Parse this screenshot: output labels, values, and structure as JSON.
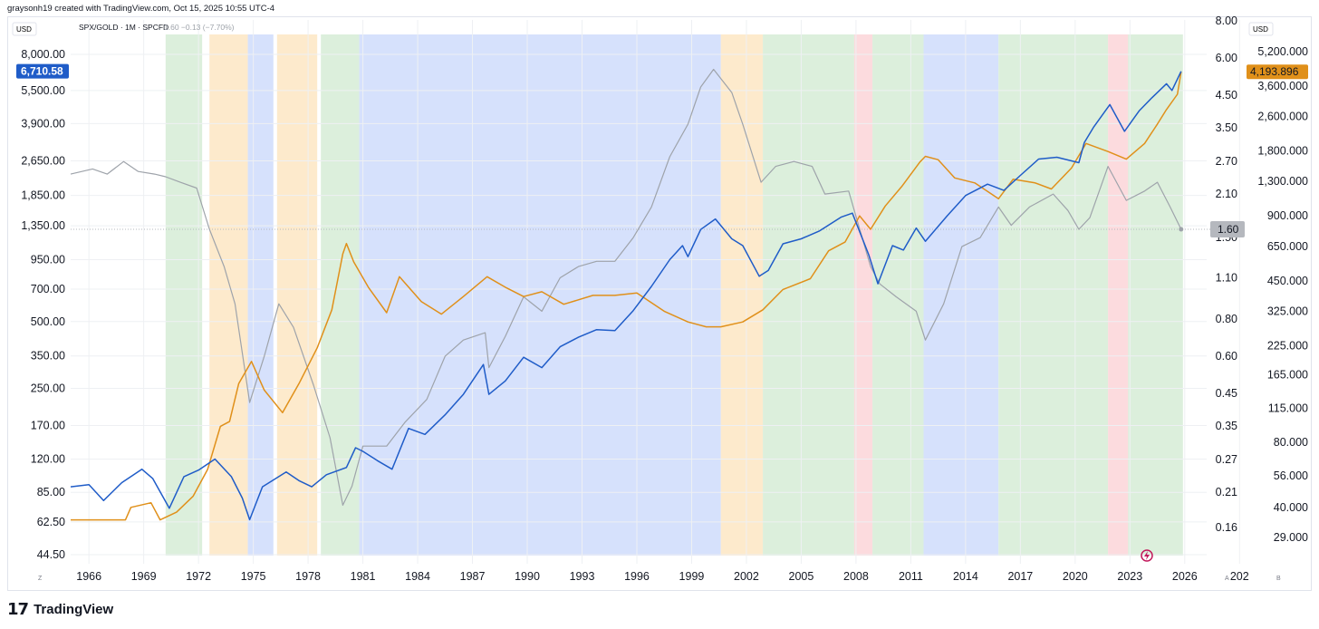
{
  "header": {
    "credit": "graysonh19 created with TradingView.com, Oct 15, 2025 10:55 UTC-4",
    "symbol_line": "SPX/GOLD · 1M · SPCFD",
    "symbol_values": "1.60  −0.13 (−7.70%)"
  },
  "footer": {
    "brand": "TradingView"
  },
  "colors": {
    "spx": "#1f5cc8",
    "gold": "#e0901a",
    "ratio": "#9ea3aa",
    "band_green": "#d6ecd6",
    "band_orange": "#fde6c3",
    "band_blue": "#cfdcfb",
    "band_red": "#fbd5d8",
    "axis_text": "#131722"
  },
  "chart_data": {
    "type": "line",
    "x_ticks": [
      "1966",
      "1969",
      "1972",
      "1975",
      "1978",
      "1981",
      "1984",
      "1987",
      "1990",
      "1993",
      "1996",
      "1999",
      "2002",
      "2005",
      "2008",
      "2011",
      "2014",
      "2017",
      "2020",
      "2023",
      "2026",
      "202"
    ],
    "y_scale": "log",
    "left_axis": {
      "currency": "USD",
      "ticks": [
        "8,000.00",
        "5,500.00",
        "3,900.00",
        "2,650.00",
        "1,850.00",
        "1,350.00",
        "950.00",
        "700.00",
        "500.00",
        "350.00",
        "250.00",
        "170.00",
        "120.00",
        "85.00",
        "62.50",
        "44.50"
      ],
      "last_value_label": "6,710.58"
    },
    "center_axis": {
      "ticks": [
        "8.00",
        "6.00",
        "4.50",
        "3.50",
        "2.70",
        "2.10",
        "1.50",
        "1.10",
        "0.80",
        "0.60",
        "0.45",
        "0.35",
        "0.27",
        "0.21",
        "0.16"
      ],
      "last_value_label": "1.60"
    },
    "right_axis": {
      "currency": "USD",
      "ticks": [
        "5,200.000",
        "3,600.000",
        "2,600.000",
        "1,800.000",
        "1,300.000",
        "900.000",
        "650.000",
        "450.000",
        "325.000",
        "225.000",
        "165.000",
        "115.000",
        "80.000",
        "56.000",
        "40.000",
        "29.000"
      ],
      "last_value_label": "4,193.896"
    },
    "series": [
      {
        "key": "spx",
        "axis": "left",
        "points": [
          [
            1965.0,
            90
          ],
          [
            1966.0,
            92
          ],
          [
            1966.8,
            78
          ],
          [
            1967.8,
            94
          ],
          [
            1968.9,
            108
          ],
          [
            1969.5,
            98
          ],
          [
            1970.4,
            72
          ],
          [
            1971.2,
            100
          ],
          [
            1972.0,
            107
          ],
          [
            1972.9,
            120
          ],
          [
            1973.8,
            100
          ],
          [
            1974.4,
            80
          ],
          [
            1974.8,
            64
          ],
          [
            1975.5,
            90
          ],
          [
            1976.8,
            105
          ],
          [
            1977.5,
            96
          ],
          [
            1978.2,
            90
          ],
          [
            1979.0,
            102
          ],
          [
            1980.1,
            110
          ],
          [
            1980.6,
            135
          ],
          [
            1981.0,
            130
          ],
          [
            1981.8,
            118
          ],
          [
            1982.6,
            108
          ],
          [
            1983.5,
            165
          ],
          [
            1984.4,
            155
          ],
          [
            1985.5,
            190
          ],
          [
            1986.5,
            235
          ],
          [
            1987.6,
            320
          ],
          [
            1987.9,
            235
          ],
          [
            1988.8,
            270
          ],
          [
            1989.8,
            345
          ],
          [
            1990.8,
            310
          ],
          [
            1991.8,
            385
          ],
          [
            1992.8,
            425
          ],
          [
            1993.8,
            460
          ],
          [
            1994.8,
            455
          ],
          [
            1995.8,
            560
          ],
          [
            1996.8,
            720
          ],
          [
            1997.8,
            950
          ],
          [
            1998.5,
            1100
          ],
          [
            1998.8,
            980
          ],
          [
            1999.5,
            1300
          ],
          [
            2000.3,
            1450
          ],
          [
            2001.2,
            1180
          ],
          [
            2001.8,
            1100
          ],
          [
            2002.7,
            800
          ],
          [
            2003.2,
            850
          ],
          [
            2004.0,
            1120
          ],
          [
            2005.0,
            1180
          ],
          [
            2006.0,
            1280
          ],
          [
            2007.2,
            1480
          ],
          [
            2007.8,
            1540
          ],
          [
            2008.7,
            1000
          ],
          [
            2009.2,
            740
          ],
          [
            2010.0,
            1100
          ],
          [
            2010.6,
            1050
          ],
          [
            2011.3,
            1320
          ],
          [
            2011.8,
            1150
          ],
          [
            2013.0,
            1500
          ],
          [
            2014.0,
            1850
          ],
          [
            2015.2,
            2080
          ],
          [
            2016.1,
            1950
          ],
          [
            2017.0,
            2280
          ],
          [
            2018.0,
            2700
          ],
          [
            2019.0,
            2750
          ],
          [
            2020.2,
            2600
          ],
          [
            2020.5,
            3200
          ],
          [
            2021.0,
            3750
          ],
          [
            2021.9,
            4750
          ],
          [
            2022.7,
            3600
          ],
          [
            2023.5,
            4450
          ],
          [
            2024.2,
            5100
          ],
          [
            2025.0,
            5900
          ],
          [
            2025.3,
            5500
          ],
          [
            2025.8,
            6710
          ]
        ]
      },
      {
        "key": "gold",
        "axis": "right",
        "points": [
          [
            1965.0,
            35
          ],
          [
            1968.0,
            35
          ],
          [
            1968.3,
            40
          ],
          [
            1969.4,
            42
          ],
          [
            1969.9,
            35
          ],
          [
            1970.8,
            38
          ],
          [
            1971.7,
            45
          ],
          [
            1972.5,
            60
          ],
          [
            1973.2,
            95
          ],
          [
            1973.7,
            100
          ],
          [
            1974.2,
            150
          ],
          [
            1974.9,
            190
          ],
          [
            1975.6,
            140
          ],
          [
            1976.6,
            110
          ],
          [
            1977.5,
            150
          ],
          [
            1978.5,
            220
          ],
          [
            1979.3,
            330
          ],
          [
            1979.9,
            600
          ],
          [
            1980.1,
            670
          ],
          [
            1980.5,
            550
          ],
          [
            1981.3,
            420
          ],
          [
            1982.3,
            320
          ],
          [
            1983.0,
            470
          ],
          [
            1984.2,
            360
          ],
          [
            1985.3,
            315
          ],
          [
            1986.5,
            380
          ],
          [
            1987.8,
            470
          ],
          [
            1988.8,
            420
          ],
          [
            1989.8,
            380
          ],
          [
            1990.8,
            400
          ],
          [
            1992.0,
            350
          ],
          [
            1993.6,
            385
          ],
          [
            1994.8,
            385
          ],
          [
            1996.0,
            395
          ],
          [
            1997.5,
            325
          ],
          [
            1998.8,
            290
          ],
          [
            1999.8,
            275
          ],
          [
            2000.6,
            275
          ],
          [
            2001.8,
            290
          ],
          [
            2002.9,
            330
          ],
          [
            2004.0,
            410
          ],
          [
            2005.5,
            460
          ],
          [
            2006.5,
            620
          ],
          [
            2007.4,
            680
          ],
          [
            2008.2,
            900
          ],
          [
            2008.8,
            780
          ],
          [
            2009.6,
            1000
          ],
          [
            2010.5,
            1230
          ],
          [
            2011.5,
            1600
          ],
          [
            2011.8,
            1700
          ],
          [
            2012.5,
            1640
          ],
          [
            2013.4,
            1350
          ],
          [
            2014.5,
            1280
          ],
          [
            2015.8,
            1080
          ],
          [
            2016.6,
            1330
          ],
          [
            2017.8,
            1280
          ],
          [
            2018.7,
            1200
          ],
          [
            2019.8,
            1500
          ],
          [
            2020.6,
            1950
          ],
          [
            2021.8,
            1790
          ],
          [
            2022.8,
            1650
          ],
          [
            2023.8,
            1950
          ],
          [
            2024.5,
            2400
          ],
          [
            2025.0,
            2800
          ],
          [
            2025.6,
            3300
          ],
          [
            2025.8,
            4194
          ]
        ]
      },
      {
        "key": "ratio",
        "axis": "center",
        "points": [
          [
            1965.0,
            2.45
          ],
          [
            1966.2,
            2.55
          ],
          [
            1967.0,
            2.45
          ],
          [
            1967.9,
            2.7
          ],
          [
            1968.7,
            2.5
          ],
          [
            1969.6,
            2.45
          ],
          [
            1970.2,
            2.4
          ],
          [
            1971.0,
            2.3
          ],
          [
            1971.9,
            2.2
          ],
          [
            1972.6,
            1.6
          ],
          [
            1973.4,
            1.2
          ],
          [
            1974.0,
            0.9
          ],
          [
            1974.8,
            0.42
          ],
          [
            1975.6,
            0.6
          ],
          [
            1976.4,
            0.9
          ],
          [
            1977.2,
            0.75
          ],
          [
            1978.3,
            0.48
          ],
          [
            1979.2,
            0.32
          ],
          [
            1979.9,
            0.19
          ],
          [
            1980.4,
            0.22
          ],
          [
            1981.0,
            0.3
          ],
          [
            1982.3,
            0.3
          ],
          [
            1983.3,
            0.36
          ],
          [
            1984.5,
            0.43
          ],
          [
            1985.5,
            0.6
          ],
          [
            1986.5,
            0.68
          ],
          [
            1987.7,
            0.72
          ],
          [
            1987.9,
            0.55
          ],
          [
            1988.8,
            0.7
          ],
          [
            1989.8,
            0.95
          ],
          [
            1990.8,
            0.85
          ],
          [
            1991.8,
            1.1
          ],
          [
            1992.8,
            1.2
          ],
          [
            1993.8,
            1.25
          ],
          [
            1994.8,
            1.25
          ],
          [
            1995.8,
            1.5
          ],
          [
            1996.8,
            1.9
          ],
          [
            1997.8,
            2.8
          ],
          [
            1998.8,
            3.6
          ],
          [
            1999.5,
            4.8
          ],
          [
            2000.2,
            5.5
          ],
          [
            2001.2,
            4.6
          ],
          [
            2001.8,
            3.6
          ],
          [
            2002.8,
            2.3
          ],
          [
            2003.6,
            2.6
          ],
          [
            2004.6,
            2.7
          ],
          [
            2005.6,
            2.6
          ],
          [
            2006.3,
            2.1
          ],
          [
            2007.6,
            2.15
          ],
          [
            2008.8,
            1.2
          ],
          [
            2009.3,
            1.05
          ],
          [
            2010.2,
            0.95
          ],
          [
            2011.3,
            0.85
          ],
          [
            2011.8,
            0.68
          ],
          [
            2012.8,
            0.9
          ],
          [
            2013.8,
            1.4
          ],
          [
            2014.8,
            1.5
          ],
          [
            2015.8,
            1.9
          ],
          [
            2016.5,
            1.65
          ],
          [
            2017.5,
            1.9
          ],
          [
            2018.8,
            2.1
          ],
          [
            2019.6,
            1.85
          ],
          [
            2020.2,
            1.6
          ],
          [
            2020.8,
            1.75
          ],
          [
            2021.8,
            2.6
          ],
          [
            2022.8,
            2.0
          ],
          [
            2023.8,
            2.15
          ],
          [
            2024.5,
            2.3
          ],
          [
            2025.2,
            1.9
          ],
          [
            2025.8,
            1.6
          ]
        ]
      }
    ],
    "bands": [
      {
        "start": 1970.2,
        "end": 1972.2,
        "color": "green"
      },
      {
        "start": 1972.6,
        "end": 1974.7,
        "color": "orange"
      },
      {
        "start": 1974.7,
        "end": 1976.1,
        "color": "blue"
      },
      {
        "start": 1976.3,
        "end": 1978.5,
        "color": "orange"
      },
      {
        "start": 1978.7,
        "end": 1980.8,
        "color": "green"
      },
      {
        "start": 1980.8,
        "end": 2000.6,
        "color": "blue"
      },
      {
        "start": 2000.6,
        "end": 2002.9,
        "color": "orange"
      },
      {
        "start": 2002.9,
        "end": 2007.9,
        "color": "green"
      },
      {
        "start": 2007.9,
        "end": 2008.9,
        "color": "red"
      },
      {
        "start": 2008.9,
        "end": 2011.7,
        "color": "green"
      },
      {
        "start": 2011.7,
        "end": 2015.8,
        "color": "blue"
      },
      {
        "start": 2015.8,
        "end": 2021.8,
        "color": "green"
      },
      {
        "start": 2021.8,
        "end": 2022.9,
        "color": "red"
      },
      {
        "start": 2022.9,
        "end": 2025.9,
        "color": "green"
      }
    ]
  }
}
